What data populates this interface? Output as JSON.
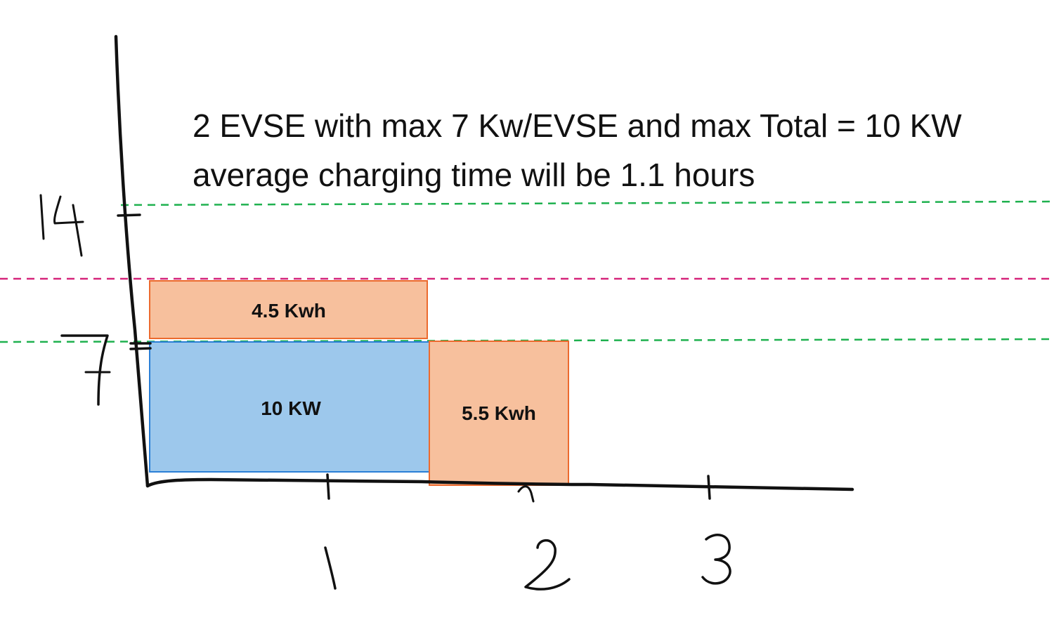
{
  "caption": {
    "line1": "2 EVSE with max  7 Kw/EVSE and max Total = 10 KW",
    "line2": "average charging time will be 1.1 hours"
  },
  "axes": {
    "y_ticks": [
      "7",
      "14"
    ],
    "x_ticks": [
      "1",
      "2",
      "3"
    ]
  },
  "guide_lines": [
    {
      "level": 14,
      "color": "#1fb14f",
      "style": "dashed"
    },
    {
      "level": 10,
      "color": "#d6257a",
      "style": "dashed"
    },
    {
      "level": 7,
      "color": "#1fb14f",
      "style": "dashed"
    }
  ],
  "blocks": [
    {
      "label": "10 KW",
      "fill": "#9dc8ec",
      "stroke": "#2a7fd6"
    },
    {
      "label": "4.5 Kwh",
      "fill": "#f7c09d",
      "stroke": "#ec6a2e"
    },
    {
      "label": "5.5 Kwh",
      "fill": "#f7c09d",
      "stroke": "#ec6a2e"
    }
  ]
}
